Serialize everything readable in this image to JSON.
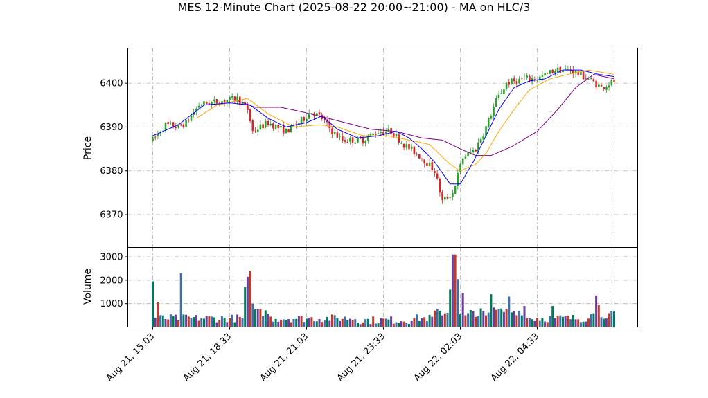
{
  "chart_data": {
    "type": "candlestick",
    "title": "MES 12-Minute Chart (2025-08-22 20:00~21:00) - MA on HLC/3",
    "price_panel": {
      "ylabel": "Price",
      "ylim": [
        6362.5,
        6408
      ],
      "yticks": [
        6370,
        6380,
        6390,
        6400
      ],
      "grid": true
    },
    "volume_panel": {
      "ylabel": "Volume",
      "ylim": [
        0,
        3400
      ],
      "yticks": [
        1000,
        2000,
        3000
      ],
      "grid": true
    },
    "x_axis": {
      "tick_labels": [
        "Aug 21, 15:03",
        "Aug 21, 18:33",
        "Aug 21, 21:03",
        "Aug 21, 23:33",
        "Aug 22, 02:03",
        "Aug 22, 04:33"
      ],
      "tick_bar_index": [
        0,
        30,
        60,
        90,
        120,
        150
      ]
    },
    "n_bars": 181,
    "candle_colors": {
      "up": "#2ca02c",
      "down": "#d62728"
    },
    "volume_colors": [
      "#007a5e",
      "#6a3d9a",
      "#c0392b",
      "#3d6fa8"
    ],
    "price_anchors": [
      [
        0,
        6387
      ],
      [
        5,
        6390.5
      ],
      [
        10,
        6390
      ],
      [
        13,
        6391
      ],
      [
        18,
        6395
      ],
      [
        22,
        6395.5
      ],
      [
        28,
        6396
      ],
      [
        33,
        6396.5
      ],
      [
        37,
        6394
      ],
      [
        39,
        6389
      ],
      [
        45,
        6391
      ],
      [
        52,
        6389
      ],
      [
        57,
        6391
      ],
      [
        62,
        6393.5
      ],
      [
        66,
        6392
      ],
      [
        70,
        6389
      ],
      [
        74,
        6387
      ],
      [
        82,
        6387
      ],
      [
        88,
        6389
      ],
      [
        93,
        6389
      ],
      [
        98,
        6386
      ],
      [
        105,
        6383
      ],
      [
        110,
        6380
      ],
      [
        113,
        6373
      ],
      [
        117,
        6375
      ],
      [
        121,
        6383
      ],
      [
        126,
        6385
      ],
      [
        130,
        6390
      ],
      [
        134,
        6396
      ],
      [
        138,
        6400
      ],
      [
        145,
        6401
      ],
      [
        150,
        6401
      ],
      [
        157,
        6403
      ],
      [
        163,
        6403
      ],
      [
        170,
        6401
      ],
      [
        175,
        6399
      ],
      [
        180,
        6400.5
      ]
    ],
    "ma_fast_anchors": [
      [
        0,
        6388
      ],
      [
        10,
        6390.5
      ],
      [
        20,
        6395
      ],
      [
        30,
        6395.5
      ],
      [
        38,
        6395
      ],
      [
        45,
        6392
      ],
      [
        52,
        6390
      ],
      [
        60,
        6391
      ],
      [
        66,
        6392.5
      ],
      [
        72,
        6389.5
      ],
      [
        80,
        6387.5
      ],
      [
        88,
        6388
      ],
      [
        95,
        6389
      ],
      [
        100,
        6387.5
      ],
      [
        105,
        6385
      ],
      [
        110,
        6382
      ],
      [
        116,
        6377
      ],
      [
        120,
        6377
      ],
      [
        125,
        6382
      ],
      [
        130,
        6388
      ],
      [
        135,
        6394
      ],
      [
        141,
        6399
      ],
      [
        147,
        6400.5
      ],
      [
        153,
        6401
      ],
      [
        160,
        6403
      ],
      [
        167,
        6403
      ],
      [
        174,
        6402
      ],
      [
        180,
        6401.5
      ]
    ],
    "ma_mid_anchors": [
      [
        17,
        6392
      ],
      [
        25,
        6395
      ],
      [
        37,
        6396.5
      ],
      [
        45,
        6393
      ],
      [
        55,
        6390
      ],
      [
        65,
        6390.5
      ],
      [
        72,
        6390
      ],
      [
        82,
        6388
      ],
      [
        92,
        6388
      ],
      [
        100,
        6387
      ],
      [
        108,
        6386
      ],
      [
        116,
        6381.5
      ],
      [
        120,
        6380
      ],
      [
        126,
        6381.5
      ],
      [
        130,
        6384
      ],
      [
        135,
        6389
      ],
      [
        141,
        6394
      ],
      [
        147,
        6398.5
      ],
      [
        155,
        6401
      ],
      [
        162,
        6402
      ],
      [
        170,
        6403
      ],
      [
        180,
        6402
      ]
    ],
    "ma_slow_anchors": [
      [
        33,
        6396
      ],
      [
        40,
        6394.5
      ],
      [
        50,
        6394.5
      ],
      [
        58,
        6393.5
      ],
      [
        65,
        6392.5
      ],
      [
        75,
        6391
      ],
      [
        85,
        6389.5
      ],
      [
        95,
        6389
      ],
      [
        105,
        6387.5
      ],
      [
        113,
        6387
      ],
      [
        120,
        6385
      ],
      [
        126,
        6383.5
      ],
      [
        132,
        6383.5
      ],
      [
        140,
        6385.5
      ],
      [
        150,
        6389
      ],
      [
        158,
        6394
      ],
      [
        165,
        6399
      ],
      [
        172,
        6402
      ],
      [
        180,
        6401
      ]
    ],
    "ma_colors": {
      "fast": "#0000ff",
      "mid": "#ffa500",
      "slow": "#800080"
    },
    "volume_spikes": [
      [
        0,
        1950
      ],
      [
        2,
        1050
      ],
      [
        11,
        2300
      ],
      [
        36,
        1700
      ],
      [
        37,
        2150
      ],
      [
        38,
        2400
      ],
      [
        39,
        1000
      ],
      [
        116,
        1600
      ],
      [
        117,
        3100
      ],
      [
        118,
        3100
      ],
      [
        119,
        2050
      ],
      [
        121,
        1450
      ],
      [
        132,
        1400
      ],
      [
        139,
        1300
      ],
      [
        145,
        900
      ],
      [
        156,
        900
      ],
      [
        173,
        1350
      ],
      [
        174,
        950
      ]
    ]
  }
}
